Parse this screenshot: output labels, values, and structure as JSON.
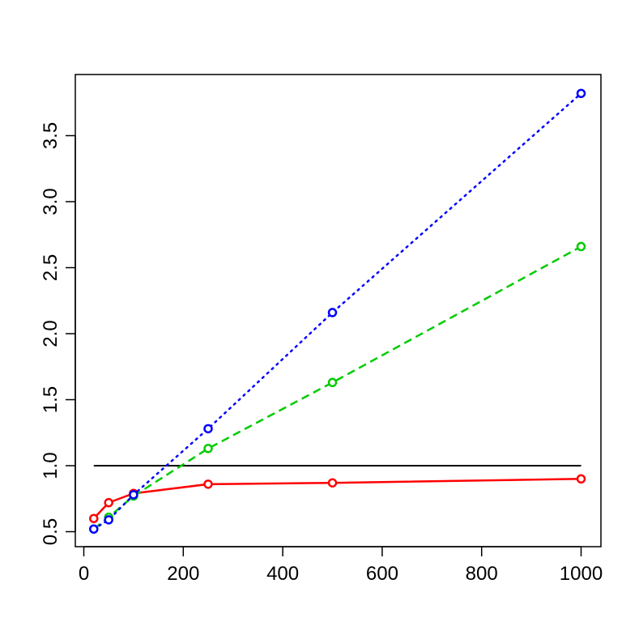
{
  "chart_data": {
    "type": "line",
    "title": "",
    "xlabel": "",
    "ylabel": "",
    "xlim": [
      0,
      1000
    ],
    "ylim": [
      0.5,
      3.8
    ],
    "xticks": [
      0,
      200,
      400,
      600,
      800,
      1000
    ],
    "yticks": [
      0.5,
      1.0,
      1.5,
      2.0,
      2.5,
      3.0,
      3.5
    ],
    "xtick_labels": [
      "0",
      "200",
      "400",
      "600",
      "800",
      "1000"
    ],
    "ytick_labels": [
      "0.5",
      "1.0",
      "1.5",
      "2.0",
      "2.5",
      "3.0",
      "3.5"
    ],
    "grid": false,
    "legend": "none",
    "x": [
      20,
      50,
      100,
      250,
      500,
      1000
    ],
    "series": [
      {
        "color": "#ff0000",
        "line_style": "solid",
        "values": [
          0.6,
          0.72,
          0.79,
          0.86,
          0.87,
          0.9
        ]
      },
      {
        "color": "#00cc00",
        "line_style": "dashed",
        "values": [
          0.52,
          0.61,
          0.77,
          1.13,
          1.63,
          2.66
        ]
      },
      {
        "color": "#0000ff",
        "line_style": "dotted",
        "values": [
          0.52,
          0.59,
          0.78,
          1.28,
          2.16,
          3.82
        ]
      }
    ],
    "reference_line": {
      "y": 1.0,
      "x_range": [
        20,
        1000
      ],
      "color": "#000000"
    }
  }
}
